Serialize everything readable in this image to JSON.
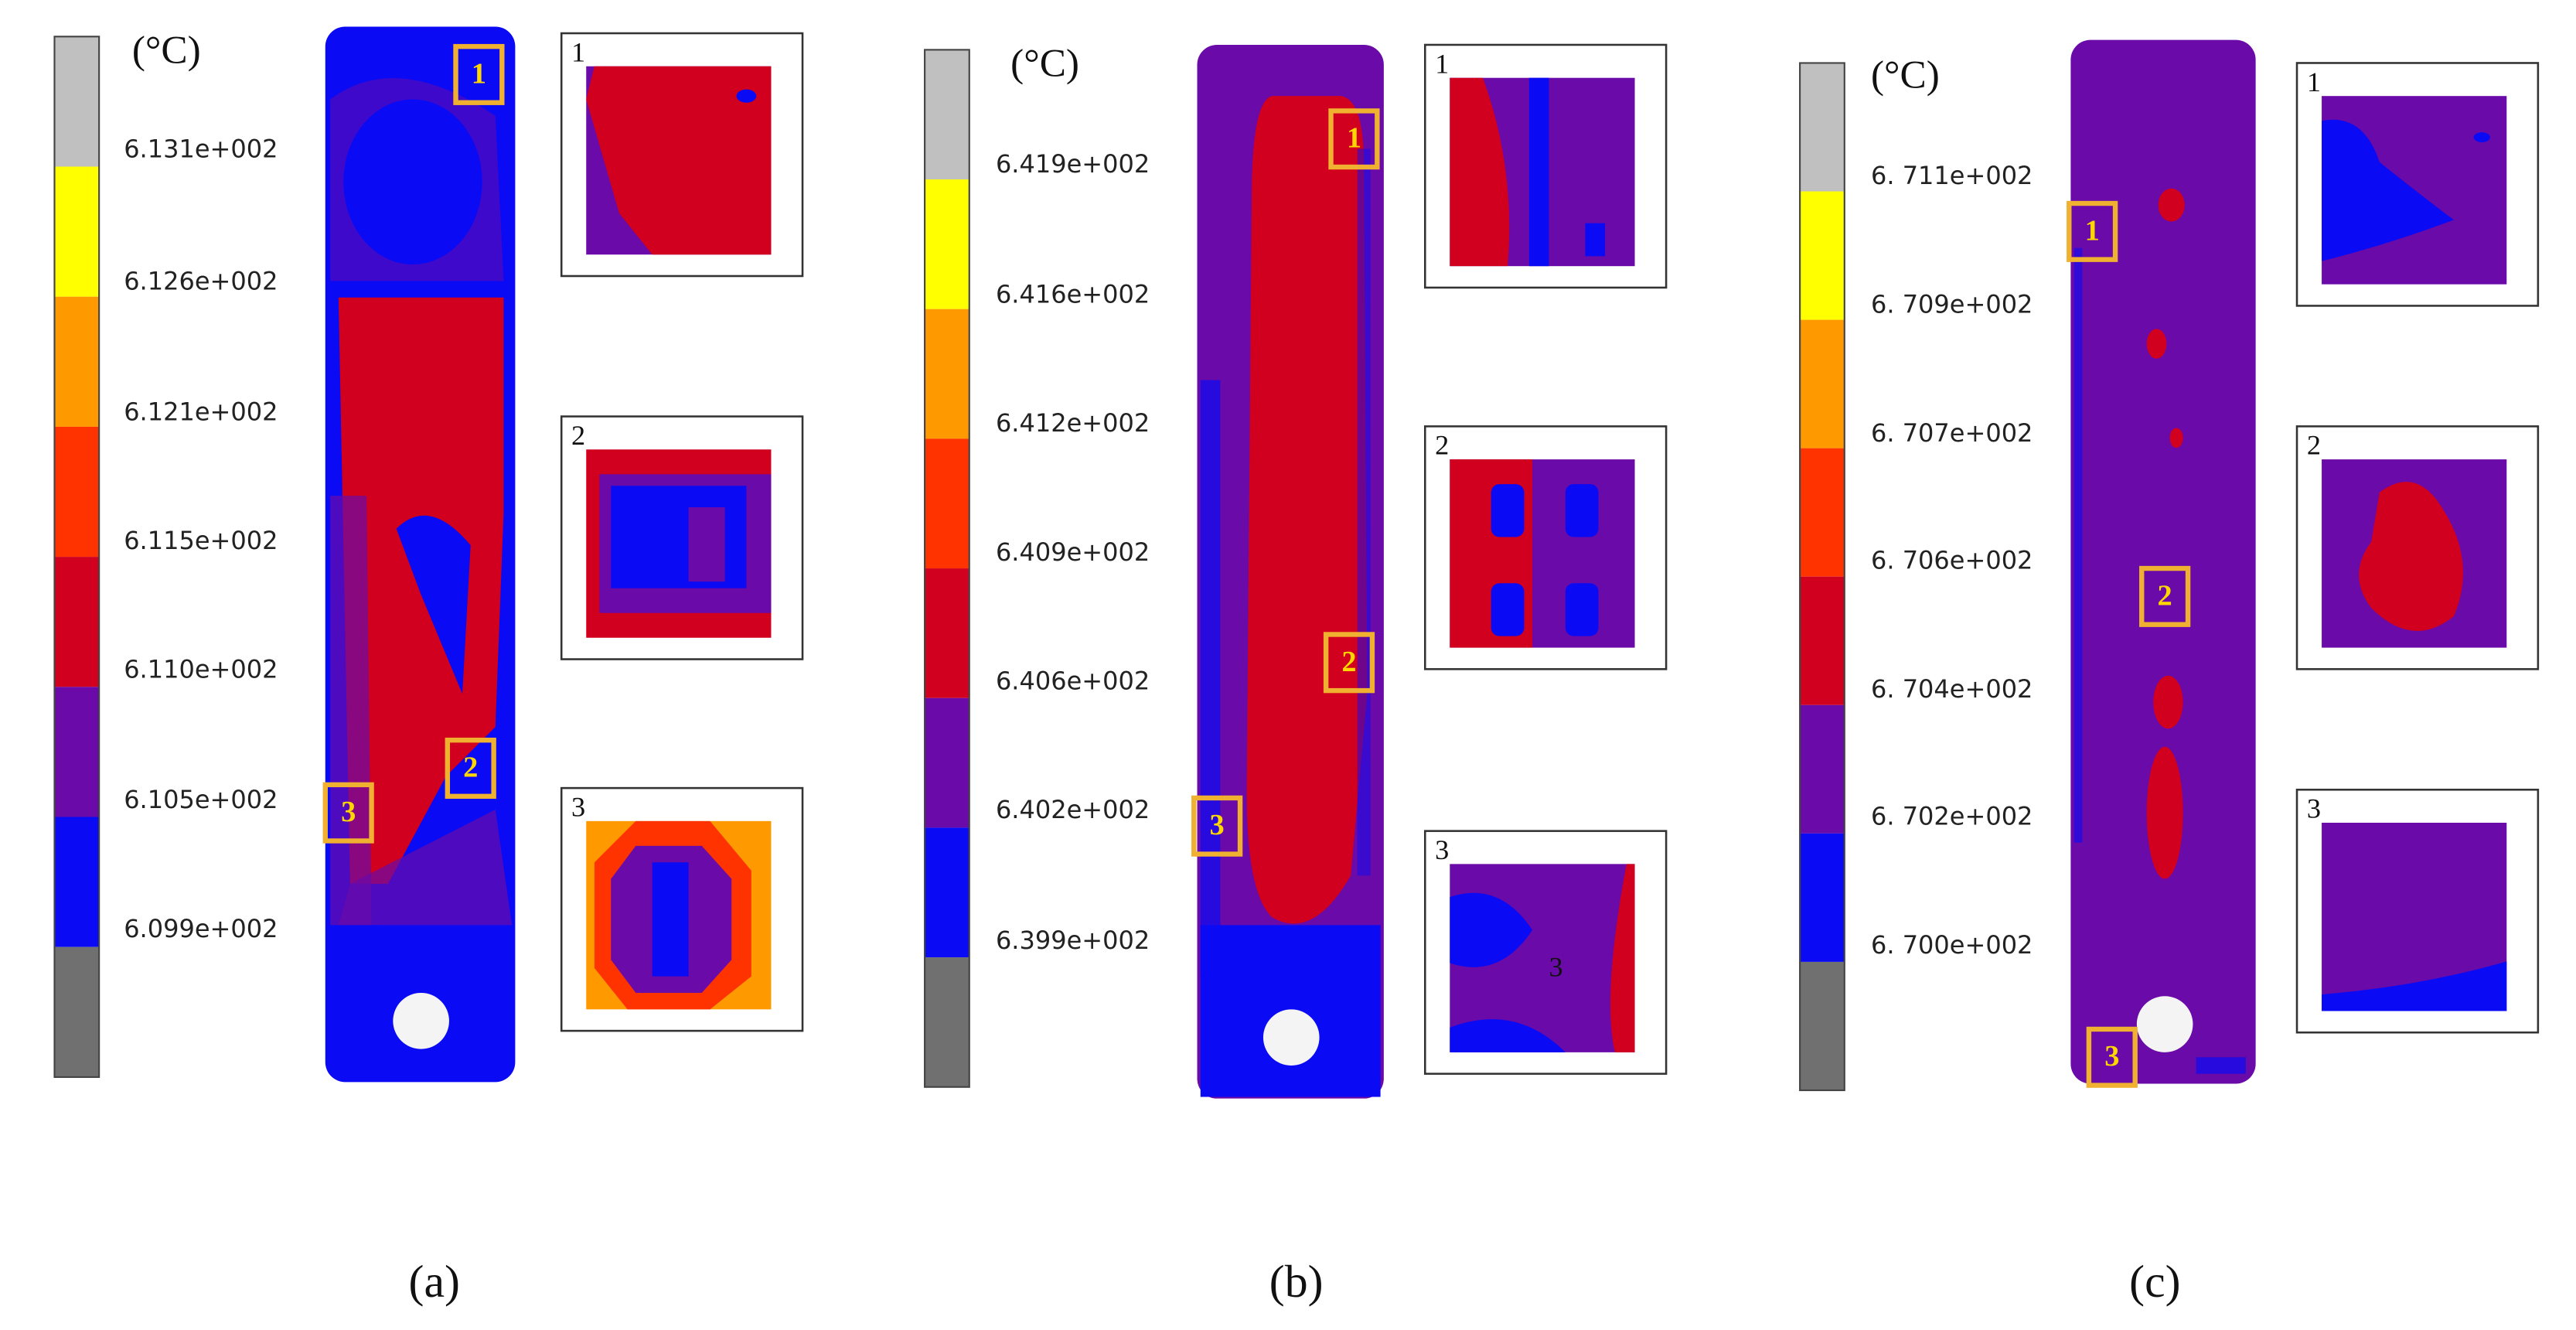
{
  "panels": [
    {
      "caption": "(a)",
      "unit": "(°C)",
      "scale_labels": [
        "6.131e+002",
        "6.126e+002",
        "6.121e+002",
        "6.115e+002",
        "6.110e+002",
        "6.105e+002",
        "6.099e+002"
      ],
      "markers": [
        "1",
        "2",
        "3"
      ],
      "insets": [
        "1",
        "2",
        "3"
      ]
    },
    {
      "caption": "(b)",
      "unit": "(°C)",
      "scale_labels": [
        "6.419e+002",
        "6.416e+002",
        "6.412e+002",
        "6.409e+002",
        "6.406e+002",
        "6.402e+002",
        "6.399e+002"
      ],
      "markers": [
        "1",
        "2",
        "3"
      ],
      "insets": [
        "1",
        "2",
        "3"
      ],
      "inset_note": "3"
    },
    {
      "caption": "(c)",
      "unit": "(°C)",
      "scale_labels": [
        "6. 711e+002",
        "6. 709e+002",
        "6. 707e+002",
        "6. 706e+002",
        "6. 704e+002",
        "6. 702e+002",
        "6. 700e+002"
      ],
      "markers": [
        "1",
        "2",
        "3"
      ],
      "insets": [
        "1",
        "2",
        "3"
      ]
    }
  ]
}
